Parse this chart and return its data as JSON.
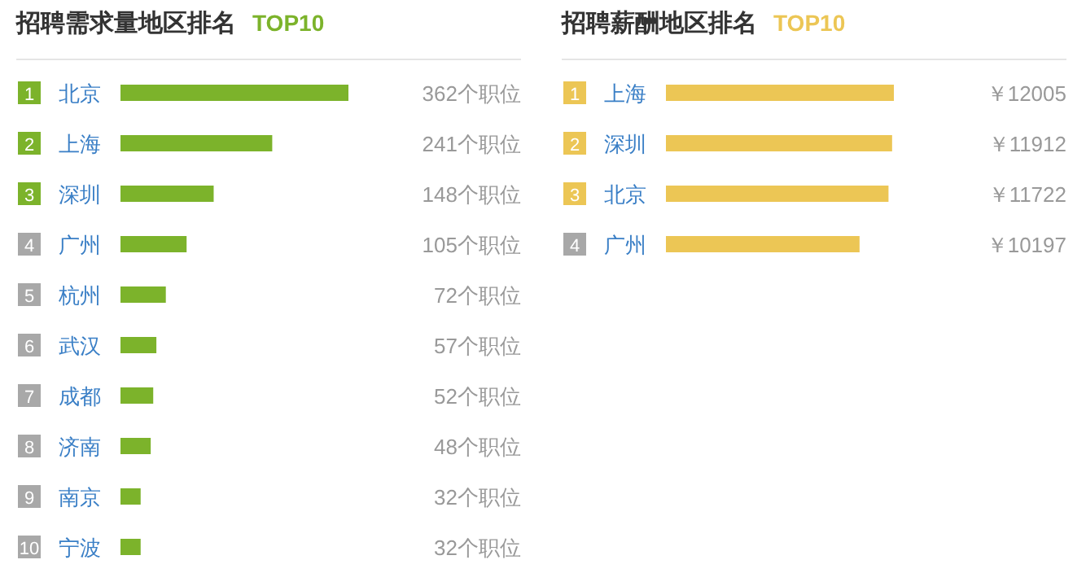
{
  "chart_data": [
    {
      "type": "bar",
      "orientation": "horizontal",
      "title": "招聘需求量地区排名",
      "subtitle": "TOP10",
      "categories": [
        "北京",
        "上海",
        "深圳",
        "广州",
        "杭州",
        "武汉",
        "成都",
        "济南",
        "南京",
        "宁波"
      ],
      "values": [
        362,
        241,
        148,
        105,
        72,
        57,
        52,
        48,
        32,
        32
      ],
      "color": "#7cb32b",
      "value_labels": [
        "362个职位",
        "241个职位",
        "148个职位",
        "105个职位",
        "72个职位",
        "57个职位",
        "52个职位",
        "48个职位",
        "32个职位",
        "32个职位"
      ],
      "annotations": [
        "1",
        "2",
        "3",
        "4",
        "5",
        "6",
        "7",
        "8",
        "9",
        "10"
      ]
    },
    {
      "type": "bar",
      "orientation": "horizontal",
      "title": "招聘薪酬地区排名",
      "subtitle": "TOP10",
      "categories": [
        "上海",
        "深圳",
        "北京",
        "广州"
      ],
      "values": [
        12005,
        11912,
        11722,
        10197
      ],
      "color": "#ecc655",
      "value_labels": [
        "￥12005",
        "￥11912",
        "￥11722",
        "￥10197"
      ],
      "annotations": [
        "1",
        "2",
        "3",
        "4"
      ]
    }
  ]
}
